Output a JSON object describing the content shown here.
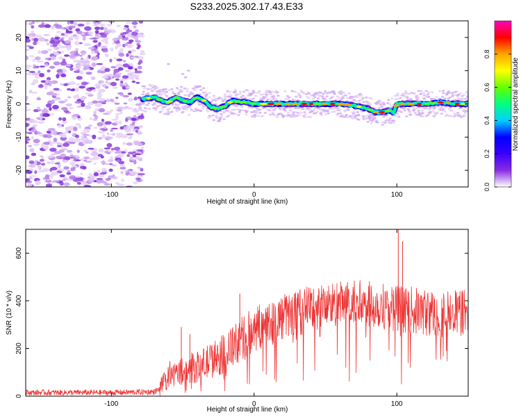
{
  "title": "S233.2025.302.17.43.E33",
  "chart_data": [
    {
      "type": "heatmap",
      "name": "spectrogram",
      "xlabel": "Height of straight line (km)",
      "ylabel": "Frequency (Hz)",
      "xlim": [
        -160,
        150
      ],
      "ylim": [
        -25,
        25
      ],
      "xticks": [
        -100,
        0,
        100
      ],
      "yticks": [
        -20,
        -10,
        0,
        10,
        20
      ],
      "noise_region_x": [
        -160,
        -78
      ],
      "signal_onset_x": -78,
      "ridge": {
        "x": [
          -78,
          -70,
          -65,
          -60,
          -55,
          -50,
          -45,
          -40,
          -35,
          -30,
          -25,
          -20,
          -15,
          -10,
          -5,
          0,
          10,
          20,
          30,
          40,
          50,
          60,
          70,
          75,
          80,
          85,
          90,
          95,
          98,
          100,
          110,
          120,
          130,
          140,
          150
        ],
        "freq": [
          1.5,
          2,
          1,
          0.5,
          2,
          1,
          0.5,
          2,
          1,
          -1,
          -1.5,
          -0.5,
          1,
          0.5,
          0.5,
          0,
          0,
          0,
          0,
          0,
          0,
          0,
          -0.5,
          -1,
          -1.5,
          -2.5,
          -2.5,
          -2,
          -2.5,
          0,
          0,
          0,
          0.5,
          0,
          0
        ]
      },
      "colorbar": {
        "label": "Normalized spectral amplitude",
        "range": [
          0,
          1
        ],
        "ticks": [
          "0.0",
          "0.2",
          "0.4",
          "0.6",
          "0.8"
        ],
        "colors": [
          "#ffffff",
          "#8a2be2",
          "#3a00ff",
          "#0000ff",
          "#00d0ff",
          "#00ff80",
          "#66ff00",
          "#ffff00",
          "#ffa500",
          "#ff0000",
          "#ff00c0"
        ]
      }
    },
    {
      "type": "line",
      "name": "snr",
      "xlabel": "Height of straight line (km)",
      "ylabel": "SNR (10 * v/v)",
      "xlim": [
        -160,
        150
      ],
      "ylim": [
        0,
        700
      ],
      "xticks": [
        -100,
        0,
        100
      ],
      "yticks": [
        0,
        200,
        400,
        600
      ],
      "color": "#ee3333",
      "trend": {
        "x": [
          -160,
          -100,
          -70,
          -66,
          -60,
          -50,
          -40,
          -30,
          -20,
          -10,
          0,
          10,
          20,
          30,
          40,
          50,
          60,
          70,
          80,
          90,
          100,
          110,
          120,
          130,
          140,
          150
        ],
        "y": [
          15,
          15,
          18,
          30,
          80,
          110,
          120,
          150,
          180,
          230,
          280,
          310,
          330,
          350,
          370,
          380,
          385,
          390,
          385,
          380,
          370,
          360,
          350,
          345,
          350,
          350
        ]
      },
      "spikes": [
        {
          "x": -51,
          "y": 290
        },
        {
          "x": -45,
          "y": 260
        },
        {
          "x": -10,
          "y": 430
        },
        {
          "x": 101,
          "y": 700
        },
        {
          "x": 104,
          "y": 650
        }
      ]
    }
  ]
}
